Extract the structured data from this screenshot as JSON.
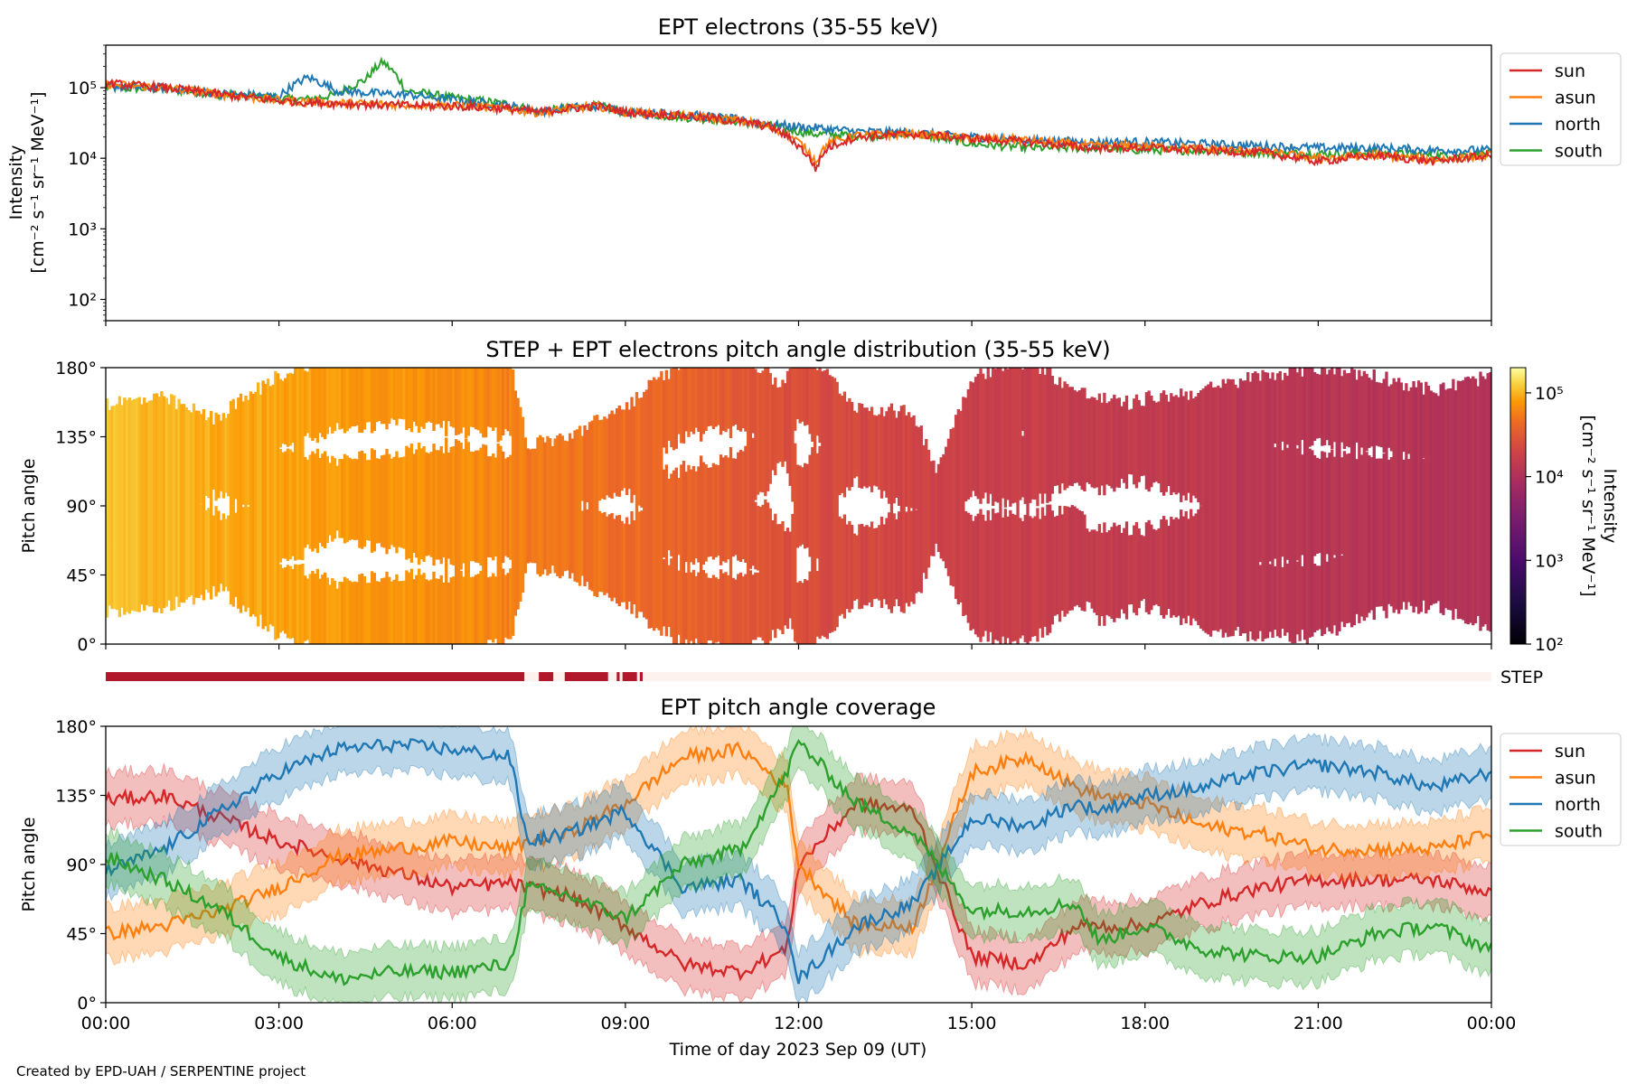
{
  "figure": {
    "credit": "Created by EPD-UAH / SERPENTINE project",
    "xlabel": "Time of day 2023 Sep 09 (UT)",
    "x_ticks": [
      "00:00",
      "03:00",
      "06:00",
      "09:00",
      "12:00",
      "15:00",
      "18:00",
      "21:00",
      "00:00"
    ],
    "series_colors": {
      "sun": "#d62728",
      "asun": "#ff7f0e",
      "north": "#1f77b4",
      "south": "#2ca02c"
    },
    "step_label": "STEP",
    "step_bar_color": "#b2182b",
    "step_bar_bg": "#fdf2ee"
  },
  "chart_data": [
    {
      "type": "line",
      "title": "EPT electrons (35-55 keV)",
      "ylabel_line1": "Intensity",
      "ylabel_line2": "[cm⁻² s⁻¹ sr⁻¹ MeV⁻¹]",
      "yscale": "log",
      "ylim": [
        50,
        400000
      ],
      "y_ticks": [
        {
          "v": 100,
          "label": "10²"
        },
        {
          "v": 1000,
          "label": "10³"
        },
        {
          "v": 10000,
          "label": "10⁴"
        },
        {
          "v": 100000,
          "label": "10⁵"
        }
      ],
      "x_hours": [
        0,
        1,
        2,
        3,
        3.5,
        4,
        4.5,
        4.8,
        5.2,
        6,
        7,
        7.5,
        8,
        8.5,
        9,
        10,
        11,
        11.5,
        12,
        12.3,
        12.5,
        13,
        14,
        15,
        16,
        17,
        18,
        19,
        20,
        21,
        22,
        23,
        24
      ],
      "legend": [
        "sun",
        "asun",
        "north",
        "south"
      ],
      "legend_position": "outside right",
      "series": [
        {
          "name": "sun",
          "values": [
            115000,
            100000,
            80000,
            65000,
            62000,
            60000,
            58000,
            57000,
            56000,
            55000,
            50000,
            45000,
            50000,
            55000,
            45000,
            40000,
            33000,
            28000,
            15000,
            7000,
            14000,
            20000,
            22000,
            19000,
            17000,
            14000,
            14000,
            13000,
            12000,
            9000,
            11000,
            9000,
            11000
          ]
        },
        {
          "name": "asun",
          "values": [
            112000,
            100000,
            80000,
            66000,
            63000,
            61000,
            59000,
            58000,
            57000,
            56000,
            50000,
            44000,
            50000,
            55000,
            45000,
            40000,
            34000,
            28000,
            17000,
            9000,
            16000,
            21000,
            22000,
            19000,
            18000,
            15000,
            15000,
            13500,
            12500,
            10000,
            11000,
            9500,
            11000
          ]
        },
        {
          "name": "north",
          "values": [
            105000,
            100000,
            82000,
            75000,
            140000,
            90000,
            85000,
            82000,
            80000,
            68000,
            55000,
            45000,
            52000,
            55000,
            46000,
            42000,
            35000,
            30000,
            28000,
            27000,
            26000,
            24000,
            23000,
            20000,
            18000,
            17000,
            17000,
            16000,
            15000,
            14000,
            14000,
            13000,
            13000
          ]
        },
        {
          "name": "south",
          "values": [
            100000,
            95000,
            80000,
            70000,
            68000,
            80000,
            130000,
            230000,
            90000,
            72000,
            58000,
            45000,
            51000,
            56000,
            44000,
            38000,
            33000,
            29000,
            24000,
            22000,
            22000,
            21000,
            22000,
            16000,
            14000,
            14000,
            13000,
            13000,
            12000,
            11500,
            12000,
            11000,
            11500
          ]
        }
      ]
    },
    {
      "type": "heatmap",
      "title": "STEP + EPT electrons pitch angle distribution (35-55 keV)",
      "ylabel": "Pitch angle",
      "ylim": [
        0,
        180
      ],
      "y_ticks": [
        {
          "v": 0,
          "label": "0°"
        },
        {
          "v": 45,
          "label": "45°"
        },
        {
          "v": 90,
          "label": "90°"
        },
        {
          "v": 135,
          "label": "135°"
        },
        {
          "v": 180,
          "label": "180°"
        }
      ],
      "colorbar": {
        "label_line1": "Intensity",
        "label_line2": "[cm⁻² s⁻¹ sr⁻¹ MeV⁻¹]",
        "scale": "log",
        "range": [
          100,
          200000
        ],
        "ticks": [
          {
            "v": 100,
            "label": "10²"
          },
          {
            "v": 1000,
            "label": "10³"
          },
          {
            "v": 10000,
            "label": "10⁴"
          },
          {
            "v": 100000,
            "label": "10⁵"
          }
        ],
        "colormap": "inferno-like"
      },
      "band_intensity_hours": [
        0,
        3,
        6,
        7.2,
        9,
        12,
        15,
        18,
        21,
        24
      ],
      "band_intensity_values": [
        110000,
        85000,
        70000,
        55000,
        45000,
        25000,
        18000,
        15000,
        12000,
        11000
      ]
    },
    {
      "type": "line",
      "title": "EPT pitch angle coverage",
      "ylabel": "Pitch angle",
      "ylim": [
        0,
        180
      ],
      "y_ticks": [
        {
          "v": 0,
          "label": "0°"
        },
        {
          "v": 45,
          "label": "45°"
        },
        {
          "v": 90,
          "label": "90°"
        },
        {
          "v": 135,
          "label": "135°"
        },
        {
          "v": 180,
          "label": "180°"
        }
      ],
      "x_hours": [
        0,
        1,
        2,
        3,
        4,
        5,
        6,
        7,
        7.3,
        8,
        9,
        10,
        11,
        11.8,
        12,
        13,
        14,
        15,
        16,
        16.8,
        17.2,
        18,
        19,
        20,
        21,
        22,
        23,
        24
      ],
      "legend": [
        "sun",
        "asun",
        "north",
        "south"
      ],
      "legend_position": "outside right",
      "series": [
        {
          "name": "sun",
          "values": [
            132,
            135,
            120,
            105,
            95,
            85,
            75,
            78,
            75,
            70,
            50,
            25,
            20,
            35,
            90,
            130,
            125,
            30,
            25,
            50,
            50,
            50,
            65,
            75,
            80,
            80,
            80,
            72
          ]
        },
        {
          "name": "asun",
          "values": [
            45,
            50,
            60,
            75,
            95,
            100,
            105,
            100,
            105,
            110,
            130,
            160,
            165,
            140,
            90,
            50,
            50,
            150,
            160,
            140,
            135,
            130,
            115,
            110,
            100,
            100,
            100,
            110
          ]
        },
        {
          "name": "north",
          "values": [
            85,
            100,
            125,
            150,
            165,
            168,
            165,
            160,
            105,
            110,
            125,
            75,
            80,
            50,
            15,
            50,
            65,
            120,
            115,
            130,
            125,
            135,
            140,
            150,
            155,
            150,
            140,
            150
          ]
        },
        {
          "name": "south",
          "values": [
            95,
            80,
            60,
            30,
            15,
            20,
            20,
            25,
            75,
            70,
            55,
            90,
            100,
            150,
            170,
            130,
            110,
            60,
            60,
            65,
            40,
            50,
            35,
            30,
            30,
            45,
            50,
            35
          ]
        }
      ]
    }
  ],
  "step_coverage": {
    "segments_hours": [
      [
        0,
        7.25
      ],
      [
        7.5,
        7.75
      ],
      [
        7.95,
        8.7
      ],
      [
        8.85,
        8.9
      ],
      [
        8.95,
        9.2
      ],
      [
        9.25,
        9.3
      ]
    ]
  }
}
